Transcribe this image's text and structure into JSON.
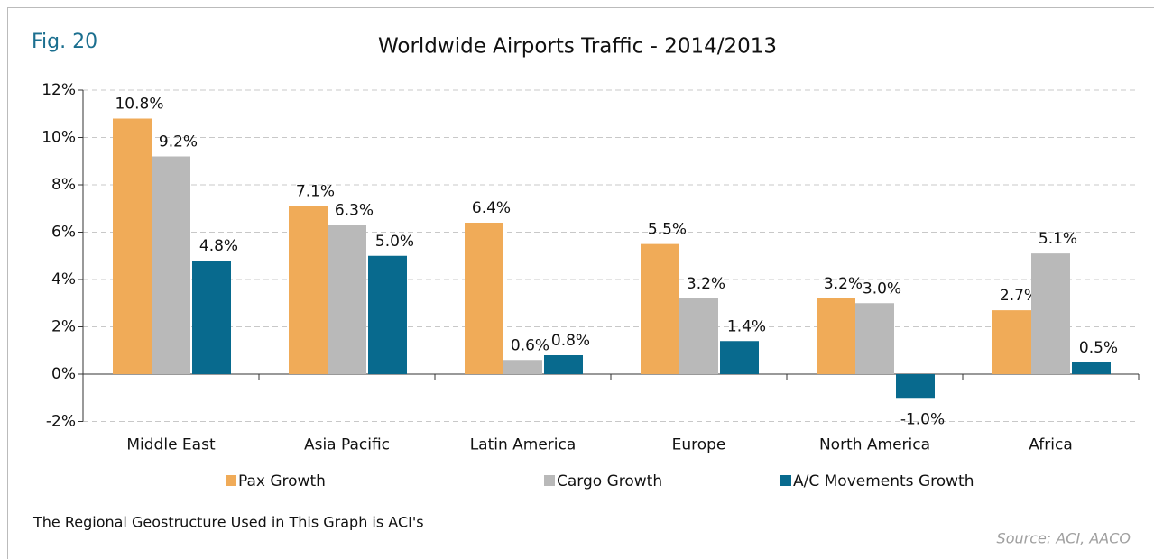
{
  "figure_label": "Fig. 20",
  "note": "The Regional Geostructure Used in This Graph is ACI's",
  "source": "Source: ACI, AACO",
  "chart_data": {
    "type": "bar",
    "title": "Worldwide Airports Traffic - 2014/2013",
    "categories": [
      "Middle East",
      "Asia Pacific",
      "Latin America",
      "Europe",
      "North America",
      "Africa"
    ],
    "series": [
      {
        "name": "Pax Growth",
        "color": "#f0ab58",
        "values": [
          10.8,
          7.1,
          6.4,
          5.5,
          3.2,
          2.7
        ],
        "value_labels": [
          "10.8%",
          "7.1%",
          "6.4%",
          "5.5%",
          "3.2%",
          "2.7%"
        ]
      },
      {
        "name": "Cargo Growth",
        "color": "#b9b9b9",
        "values": [
          9.2,
          6.3,
          0.6,
          3.2,
          3.0,
          5.1
        ],
        "value_labels": [
          "9.2%",
          "6.3%",
          "0.6%",
          "3.2%",
          "3.0%",
          "5.1%"
        ]
      },
      {
        "name": "A/C Movements Growth",
        "color": "#086a8e",
        "values": [
          4.8,
          5.0,
          0.8,
          1.4,
          -1.0,
          0.5
        ],
        "value_labels": [
          "4.8%",
          "5.0%",
          "0.8%",
          "1.4%",
          "-1.0%",
          "0.5%"
        ]
      }
    ],
    "ylim": [
      -2,
      12
    ],
    "yticks": [
      {
        "value": -2,
        "label": "-2%"
      },
      {
        "value": 0,
        "label": "0%"
      },
      {
        "value": 2,
        "label": "2%"
      },
      {
        "value": 4,
        "label": "4%"
      },
      {
        "value": 6,
        "label": "6%"
      },
      {
        "value": 8,
        "label": "8%"
      },
      {
        "value": 10,
        "label": "10%"
      },
      {
        "value": 12,
        "label": "12%"
      }
    ],
    "grid": true
  }
}
